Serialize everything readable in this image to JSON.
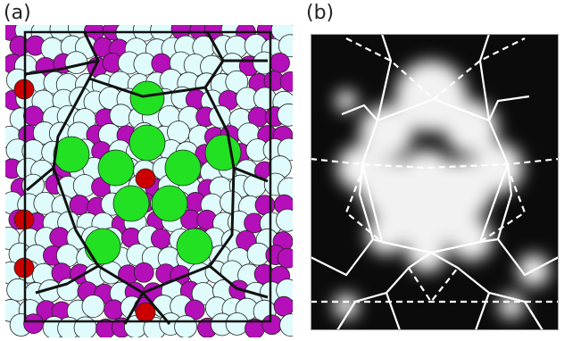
{
  "figure": {
    "panel_a": {
      "label": "(a)"
    },
    "panel_b": {
      "label": "(b)"
    }
  },
  "colors": {
    "background": "#ffffff",
    "atom_pale": "#e0fbfb",
    "atom_magenta": "#b40fb8",
    "atom_green": "#22e022",
    "atom_red": "#cc0000",
    "tiling_black": "#111111",
    "density_dark": "#0a0a0a",
    "density_bright": "#f2f2f2",
    "overlay_white": "#ffffff"
  },
  "icons": {
    "panel_a": "atomic-structure-diagram",
    "panel_b": "grayscale-density-map"
  }
}
